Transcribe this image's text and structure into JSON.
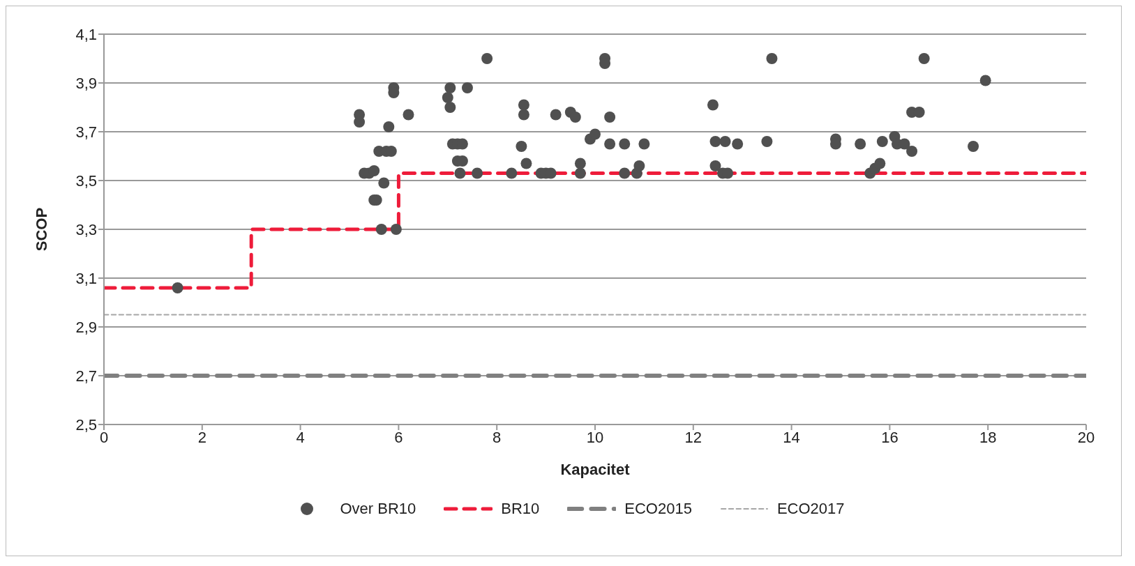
{
  "chart_data": {
    "type": "scatter",
    "xlabel": "Kapacitet",
    "ylabel": "SCOP",
    "xlim": [
      0,
      20
    ],
    "xticks": [
      0,
      2,
      4,
      6,
      8,
      10,
      12,
      14,
      16,
      18,
      20
    ],
    "ylim": [
      2.5,
      4.1
    ],
    "yticks": [
      {
        "value": 2.5,
        "label": "2,5"
      },
      {
        "value": 2.7,
        "label": "2,7"
      },
      {
        "value": 2.9,
        "label": "2,9"
      },
      {
        "value": 3.1,
        "label": "3,1"
      },
      {
        "value": 3.3,
        "label": "3,3"
      },
      {
        "value": 3.5,
        "label": "3,5"
      },
      {
        "value": 3.7,
        "label": "3,7"
      },
      {
        "value": 3.9,
        "label": "3,9"
      },
      {
        "value": 4.1,
        "label": "4,1"
      }
    ],
    "grid": "y",
    "legend": "bottom",
    "series": [
      {
        "name": "Over BR10",
        "marker": "circle",
        "color": "#505050",
        "x": [
          1.5,
          5.2,
          5.2,
          5.3,
          5.4,
          5.5,
          5.55,
          5.5,
          5.6,
          5.65,
          5.7,
          5.75,
          5.8,
          5.85,
          5.9,
          5.9,
          5.95,
          6.2,
          7.0,
          7.05,
          7.05,
          7.1,
          7.2,
          7.2,
          7.25,
          7.3,
          7.3,
          7.4,
          7.6,
          7.8,
          8.3,
          8.5,
          8.55,
          8.55,
          8.6,
          8.9,
          9.0,
          9.1,
          9.2,
          9.5,
          9.6,
          9.7,
          9.7,
          9.9,
          10.0,
          10.2,
          10.2,
          10.3,
          10.3,
          10.6,
          10.6,
          10.85,
          10.9,
          11.0,
          12.4,
          12.45,
          12.45,
          12.6,
          12.65,
          12.7,
          12.9,
          13.5,
          13.6,
          14.9,
          14.9,
          15.4,
          15.6,
          15.7,
          15.8,
          15.85,
          16.1,
          16.15,
          16.3,
          16.45,
          16.45,
          16.6,
          16.7,
          17.7,
          17.95
        ],
        "values": [
          3.06,
          3.77,
          3.74,
          3.53,
          3.53,
          3.42,
          3.42,
          3.54,
          3.62,
          3.3,
          3.49,
          3.62,
          3.72,
          3.62,
          3.88,
          3.86,
          3.3,
          3.77,
          3.84,
          3.88,
          3.8,
          3.65,
          3.65,
          3.58,
          3.53,
          3.65,
          3.58,
          3.88,
          3.53,
          4.0,
          3.53,
          3.64,
          3.81,
          3.77,
          3.57,
          3.53,
          3.53,
          3.53,
          3.77,
          3.78,
          3.76,
          3.53,
          3.57,
          3.67,
          3.69,
          4.0,
          3.98,
          3.76,
          3.65,
          3.65,
          3.53,
          3.53,
          3.56,
          3.65,
          3.81,
          3.66,
          3.56,
          3.53,
          3.66,
          3.53,
          3.65,
          3.66,
          4.0,
          3.67,
          3.65,
          3.65,
          3.53,
          3.55,
          3.57,
          3.66,
          3.68,
          3.65,
          3.65,
          3.62,
          3.78,
          3.78,
          4.0,
          3.64,
          3.91
        ]
      },
      {
        "name": "BR10",
        "type": "line",
        "marker": "none",
        "line_style": "dashed",
        "color": "#ee1c3a",
        "x": [
          0,
          3,
          3,
          6,
          6,
          20
        ],
        "values": [
          3.06,
          3.06,
          3.3,
          3.3,
          3.53,
          3.53
        ]
      },
      {
        "name": "ECO2015",
        "type": "line",
        "marker": "none",
        "line_style": "dashed",
        "color": "#808080",
        "x": [
          0,
          20
        ],
        "values": [
          2.7,
          2.7
        ]
      },
      {
        "name": "ECO2017",
        "type": "line",
        "marker": "none",
        "line_style": "dashed",
        "color": "#a6a6a6",
        "x": [
          0,
          20
        ],
        "values": [
          2.95,
          2.95
        ]
      }
    ]
  }
}
